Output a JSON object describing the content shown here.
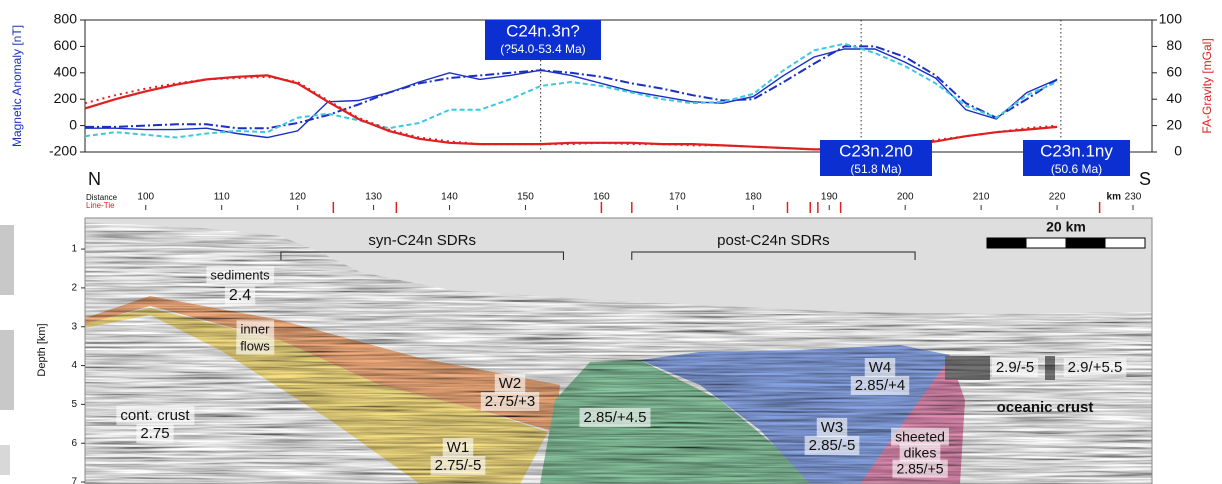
{
  "chart_data": [
    {
      "type": "line",
      "ylabel": "Magnetic Anomaly [nT]",
      "y2label": "FA-Gravity [mGal]",
      "x": [
        92,
        96,
        100,
        104,
        108,
        112,
        116,
        120,
        124,
        128,
        132,
        136,
        140,
        144,
        148,
        152,
        156,
        160,
        164,
        168,
        172,
        176,
        180,
        184,
        188,
        192,
        196,
        200,
        204,
        208,
        212,
        216,
        220
      ],
      "xlim": [
        92,
        232.5
      ],
      "ylim": [
        -200,
        800
      ],
      "yticks": [
        -200,
        0,
        200,
        400,
        600,
        800
      ],
      "y2lim": [
        0,
        100
      ],
      "y2ticks": [
        0,
        20,
        40,
        60,
        80,
        100
      ],
      "grid": false,
      "series": [
        {
          "color": "#1a2fc4",
          "style": "solid",
          "values": [
            -20,
            -20,
            -30,
            -30,
            -20,
            -60,
            -90,
            -40,
            180,
            190,
            250,
            330,
            400,
            350,
            380,
            420,
            380,
            320,
            260,
            220,
            180,
            170,
            220,
            380,
            520,
            580,
            580,
            480,
            360,
            120,
            50,
            250,
            350
          ]
        },
        {
          "color": "#1a2fc4",
          "style": "dashdot",
          "values": [
            -10,
            -10,
            0,
            10,
            10,
            -20,
            -20,
            20,
            80,
            160,
            250,
            320,
            360,
            380,
            400,
            420,
            400,
            370,
            320,
            280,
            230,
            190,
            200,
            330,
            470,
            600,
            600,
            520,
            380,
            170,
            60,
            200,
            350
          ]
        },
        {
          "color": "#3cc8e0",
          "style": "dashed",
          "values": [
            -80,
            -50,
            -70,
            -90,
            -60,
            -40,
            -50,
            60,
            90,
            40,
            -20,
            20,
            120,
            120,
            200,
            300,
            330,
            300,
            250,
            200,
            170,
            180,
            240,
            420,
            570,
            620,
            550,
            450,
            320,
            150,
            60,
            230,
            330
          ]
        },
        {
          "color": "#e02020",
          "style": "solid",
          "axis": "y2",
          "values": [
            33,
            40,
            46,
            51,
            55,
            57,
            58,
            52,
            38,
            25,
            16,
            10,
            7,
            6,
            6,
            6,
            7,
            7,
            7,
            6,
            6,
            5,
            4,
            3,
            2,
            2,
            3,
            5,
            8,
            12,
            15,
            17,
            19
          ]
        },
        {
          "color": "#e02020",
          "style": "dotted",
          "axis": "y2",
          "values": [
            37,
            43,
            48,
            52,
            55,
            56,
            57,
            53,
            39,
            26,
            17,
            11,
            8,
            6,
            6,
            6,
            6,
            7,
            6,
            6,
            5,
            5,
            4,
            3,
            2,
            3,
            4,
            6,
            9,
            12,
            15,
            18,
            20
          ]
        }
      ],
      "chrons": [
        {
          "label": "C24n.3n?",
          "age": "(?54.0-53.4 Ma)",
          "x": 152
        },
        {
          "label": "C23n.2n0",
          "age": "(51.8 Ma)",
          "x": 194.2
        },
        {
          "label": "C23n.1ny",
          "age": "(50.6 Ma)",
          "x": 220.5
        }
      ]
    },
    {
      "type": "section",
      "north": "N",
      "south": "S",
      "xlabel": "Distance",
      "tie_label": "Line-Tie",
      "x_unit": "km",
      "xlim": [
        92,
        232.5
      ],
      "xticks": [
        100,
        110,
        120,
        130,
        140,
        150,
        160,
        170,
        180,
        190,
        200,
        210,
        220,
        230
      ],
      "line_ties": [
        124.7,
        133,
        160,
        164,
        184.5,
        187.5,
        188.5,
        191.5,
        225.6
      ],
      "ylabel": "Depth [km]",
      "ylim": [
        0.2,
        7.05
      ],
      "yticks": [
        1,
        2,
        3,
        4,
        5,
        6,
        7
      ],
      "scale_bar": "20 km",
      "brackets": [
        {
          "label": "syn-C24n SDRs",
          "x": [
            117.8,
            155
          ]
        },
        {
          "label": "post-C24n SDRs",
          "x": [
            164,
            201.3
          ]
        }
      ],
      "labels": [
        "sediments",
        "2.4",
        "inner",
        "flows",
        "cont. crust",
        "2.75",
        "W1",
        "2.75/-5",
        "W2",
        "2.75/+3",
        "2.85/+4.5",
        "W3",
        "2.85/-5",
        "W4",
        "2.85/+4",
        "sheeted",
        "dikes",
        "2.85/+5",
        "2.9/-5",
        "2.9/+5.5",
        "oceanic crust"
      ]
    }
  ]
}
